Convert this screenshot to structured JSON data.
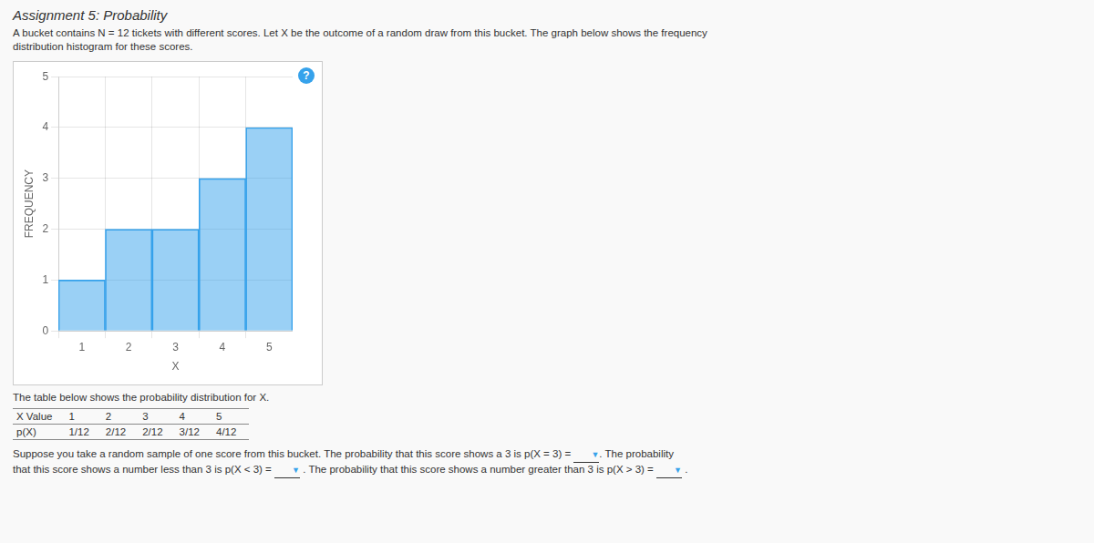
{
  "chart_data": {
    "type": "bar",
    "title": "Assignment 5: Probability",
    "xlabel": "X",
    "ylabel": "FREQUENCY",
    "x": [
      1,
      2,
      3,
      4,
      5
    ],
    "values": [
      1,
      2,
      2,
      3,
      4
    ],
    "xlim": [
      0.5,
      5.5
    ],
    "xticks": [
      1,
      2,
      3,
      4,
      5
    ],
    "ylim": [
      0,
      5
    ],
    "yticks": [
      0,
      1,
      2,
      3,
      4,
      5
    ],
    "grid": true,
    "table": [
      [
        "X Value",
        "1",
        "2",
        "3",
        "4",
        "5"
      ],
      [
        "p(X)",
        "1/12",
        "2/12",
        "2/12",
        "3/12",
        "4/12"
      ]
    ],
    "annotations": [
      "A bucket contains N = 12 tickets with different scores. Let X be the outcome of a random draw from this bucket. The graph below shows the frequency",
      "distribution histogram for these scores.",
      "?",
      "The table below shows the probability distribution for X.",
      "Suppose you take a random sample of one score from this bucket. The probability that this score shows a 3 is p(X = 3) = ",
      "▼",
      ". The probability",
      "that this score shows a number less than 3 is p(X < 3) = ",
      "▼",
      " . The probability that this score shows a number greater than 3 is p(X > 3) = ",
      "▼",
      " ."
    ]
  }
}
